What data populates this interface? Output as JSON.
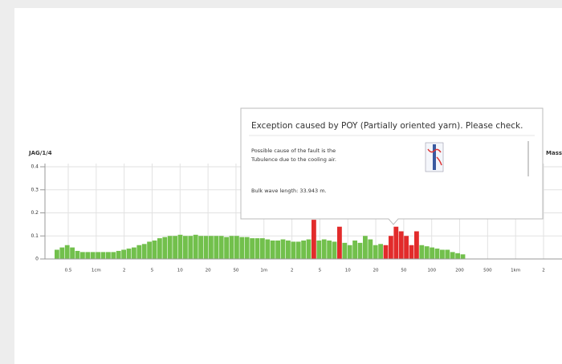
{
  "chart_data": {
    "type": "bar",
    "y_axis_label": "JAG/1/4",
    "right_label": "Mass",
    "ylim": [
      0,
      0.4
    ],
    "yticks": [
      0,
      0.1,
      0.2,
      0.3,
      0.4
    ],
    "grid": true,
    "xtick_labels": [
      "0.5",
      "1cm",
      "2",
      "5",
      "10",
      "20",
      "50",
      "1m",
      "2",
      "5",
      "10",
      "20",
      "50",
      "100",
      "200",
      "500",
      "1km",
      "2"
    ],
    "values": [
      0.04,
      0.05,
      0.06,
      0.05,
      0.035,
      0.03,
      0.03,
      0.03,
      0.03,
      0.03,
      0.03,
      0.03,
      0.035,
      0.04,
      0.045,
      0.05,
      0.06,
      0.065,
      0.075,
      0.08,
      0.09,
      0.095,
      0.1,
      0.1,
      0.105,
      0.1,
      0.1,
      0.105,
      0.1,
      0.1,
      0.1,
      0.1,
      0.1,
      0.095,
      0.1,
      0.1,
      0.095,
      0.095,
      0.09,
      0.09,
      0.09,
      0.085,
      0.08,
      0.08,
      0.085,
      0.08,
      0.075,
      0.075,
      0.08,
      0.085,
      0.17,
      0.08,
      0.085,
      0.08,
      0.075,
      0.14,
      0.07,
      0.06,
      0.08,
      0.07,
      0.1,
      0.085,
      0.06,
      0.065,
      0.06,
      0.1,
      0.14,
      0.12,
      0.1,
      0.06,
      0.12,
      0.06,
      0.055,
      0.05,
      0.045,
      0.04,
      0.04,
      0.03,
      0.025,
      0.02
    ],
    "bar_colors": [
      "#72c04c",
      "#72c04c",
      "#72c04c",
      "#72c04c",
      "#72c04c",
      "#72c04c",
      "#72c04c",
      "#72c04c",
      "#72c04c",
      "#72c04c",
      "#72c04c",
      "#72c04c",
      "#72c04c",
      "#72c04c",
      "#72c04c",
      "#72c04c",
      "#72c04c",
      "#72c04c",
      "#72c04c",
      "#72c04c",
      "#72c04c",
      "#72c04c",
      "#72c04c",
      "#72c04c",
      "#72c04c",
      "#72c04c",
      "#72c04c",
      "#72c04c",
      "#72c04c",
      "#72c04c",
      "#72c04c",
      "#72c04c",
      "#72c04c",
      "#72c04c",
      "#72c04c",
      "#72c04c",
      "#72c04c",
      "#72c04c",
      "#72c04c",
      "#72c04c",
      "#72c04c",
      "#72c04c",
      "#72c04c",
      "#72c04c",
      "#72c04c",
      "#72c04c",
      "#72c04c",
      "#72c04c",
      "#72c04c",
      "#72c04c",
      "#e22b2b",
      "#72c04c",
      "#72c04c",
      "#72c04c",
      "#72c04c",
      "#e22b2b",
      "#72c04c",
      "#72c04c",
      "#72c04c",
      "#72c04c",
      "#72c04c",
      "#72c04c",
      "#72c04c",
      "#72c04c",
      "#e22b2b",
      "#e22b2b",
      "#e22b2b",
      "#e22b2b",
      "#e22b2b",
      "#e22b2b",
      "#e22b2b",
      "#72c04c",
      "#72c04c",
      "#72c04c",
      "#72c04c",
      "#72c04c",
      "#72c04c",
      "#72c04c",
      "#72c04c",
      "#72c04c"
    ]
  },
  "tooltip": {
    "title": "Exception caused by POY (Partially oriented yarn). Please check.",
    "cause": [
      "Possible cause of the fault is the",
      "Tubulence due to the cooling air."
    ],
    "detail": "Bulk wave length: 33.943 m."
  }
}
